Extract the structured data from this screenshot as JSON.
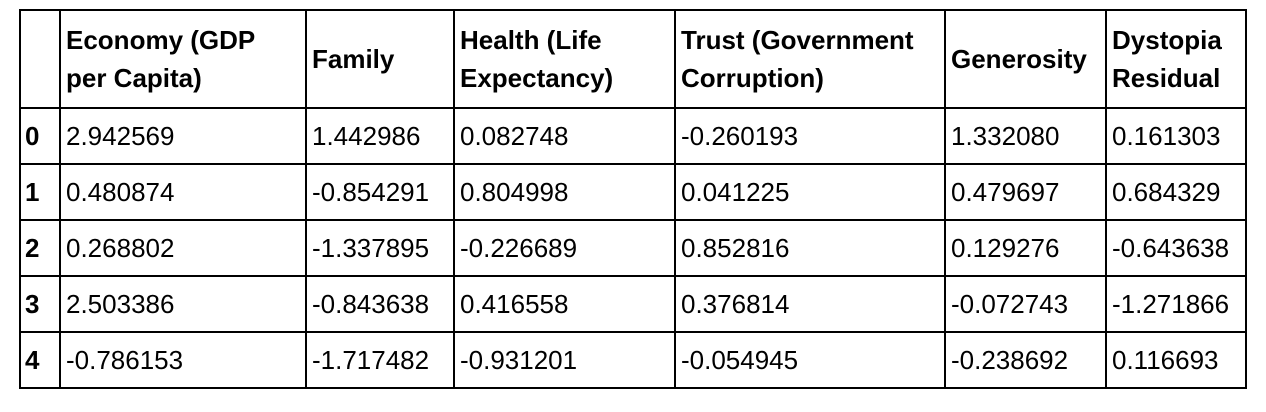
{
  "chart_data": {
    "type": "table",
    "index_header": "",
    "columns": [
      "Economy (GDP per Capita)",
      "Family",
      "Health (Life Expectancy)",
      "Trust (Government Corruption)",
      "Generosity",
      "Dystopia Residual"
    ],
    "index": [
      "0",
      "1",
      "2",
      "3",
      "4"
    ],
    "rows": [
      [
        "2.942569",
        "1.442986",
        "0.082748",
        "-0.260193",
        "1.332080",
        "0.161303"
      ],
      [
        "0.480874",
        "-0.854291",
        "0.804998",
        "0.041225",
        "0.479697",
        "0.684329"
      ],
      [
        "0.268802",
        "-1.337895",
        "-0.226689",
        "0.852816",
        "0.129276",
        "-0.643638"
      ],
      [
        "2.503386",
        "-0.843638",
        "0.416558",
        "0.376814",
        "-0.072743",
        "-1.271866"
      ],
      [
        "-0.786153",
        "-1.717482",
        "-0.931201",
        "-0.054945",
        "-0.238692",
        "0.116693"
      ]
    ]
  }
}
